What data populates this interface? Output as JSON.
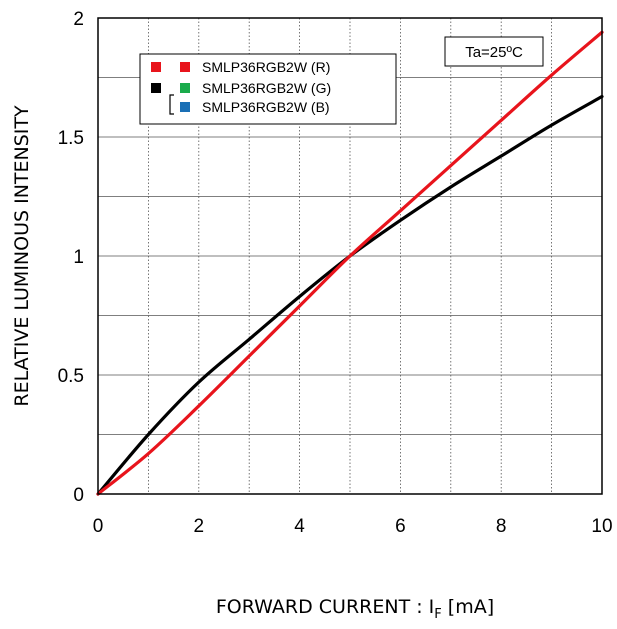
{
  "chart_data": {
    "type": "line",
    "xlabel": "FORWARD CURRENT : I",
    "xlabel_subscript": "F",
    "xlabel_unit": " [mA]",
    "ylabel": "RELATIVE LUMINOUS INTENSITY",
    "xlim": [
      0,
      10
    ],
    "ylim": [
      0,
      2
    ],
    "x_ticks": [
      "0",
      "2",
      "4",
      "6",
      "8",
      "10"
    ],
    "y_ticks": [
      "0",
      "0.5",
      "1",
      "1.5",
      "2"
    ],
    "grid": true,
    "annotation": "Ta=25ºC",
    "legend": {
      "placement": "top-left",
      "entries": [
        {
          "label": "SMLP36RGB2W (R)",
          "colors": [
            "#e8141c",
            "#e8141c"
          ]
        },
        {
          "label": "SMLP36RGB2W (G)",
          "colors": [
            "#000000",
            "#1aab4b"
          ]
        },
        {
          "label": "SMLP36RGB2W (B)",
          "colors": [
            "#1a6fb5"
          ]
        }
      ]
    },
    "series": [
      {
        "color": "#000000",
        "x": [
          0,
          1,
          2,
          3,
          4,
          5,
          6,
          7,
          8,
          9,
          10
        ],
        "y": [
          0,
          0.25,
          0.47,
          0.65,
          0.83,
          1.0,
          1.15,
          1.29,
          1.42,
          1.55,
          1.67
        ]
      },
      {
        "color": "#e8141c",
        "x": [
          0,
          1,
          2,
          3,
          4,
          5,
          6,
          7,
          8,
          9,
          10
        ],
        "y": [
          0,
          0.17,
          0.37,
          0.58,
          0.79,
          1.0,
          1.19,
          1.38,
          1.57,
          1.76,
          1.94
        ]
      }
    ]
  }
}
